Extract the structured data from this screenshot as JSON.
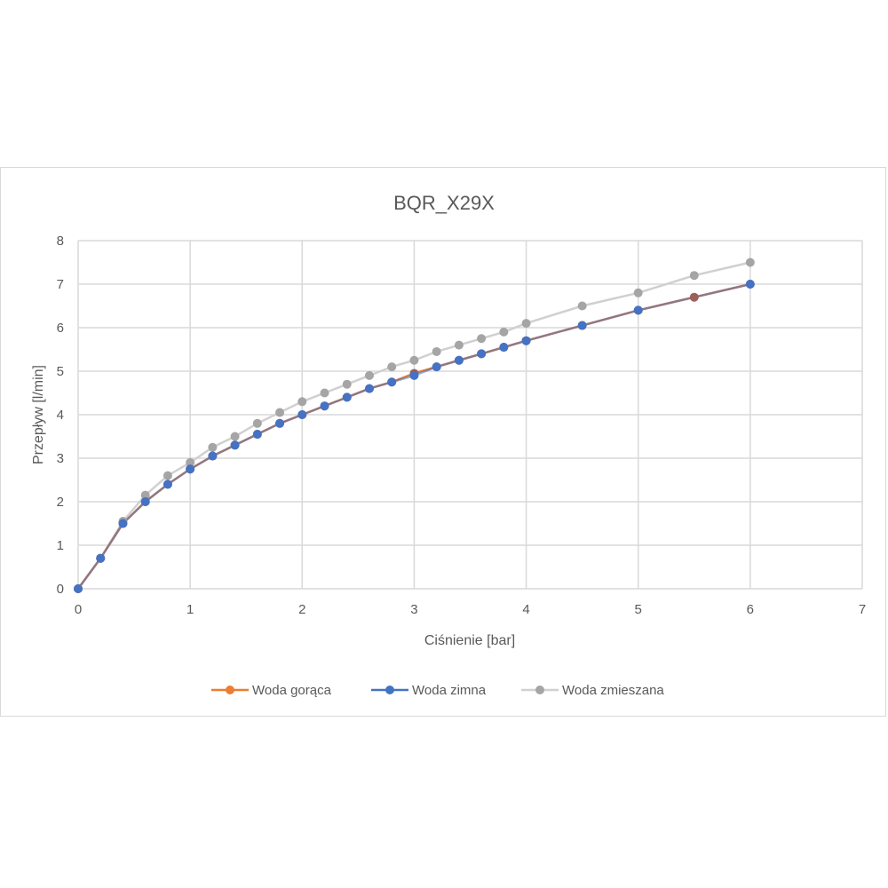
{
  "chart_data": {
    "type": "line",
    "title": "BQR_X29X",
    "xlabel": "Ciśnienie [bar]",
    "ylabel": "Przepływ [l/min]",
    "xlim": [
      0,
      7
    ],
    "ylim": [
      0,
      8
    ],
    "xticks": [
      "0",
      "1",
      "2",
      "3",
      "4",
      "5",
      "6",
      "7"
    ],
    "yticks": [
      "0",
      "1",
      "2",
      "3",
      "4",
      "5",
      "6",
      "7",
      "8"
    ],
    "grid": true,
    "legend_position": "bottom",
    "x": [
      0,
      0.2,
      0.4,
      0.6,
      0.8,
      1.0,
      1.2,
      1.4,
      1.6,
      1.8,
      2.0,
      2.2,
      2.4,
      2.6,
      2.8,
      3.0,
      3.2,
      3.4,
      3.6,
      3.8,
      4.0,
      4.5,
      5.0,
      5.5,
      6.0
    ],
    "series": [
      {
        "name": "Woda gorąca",
        "color": "#ED7D31",
        "values": [
          0,
          0.7,
          1.5,
          2.0,
          2.4,
          2.75,
          3.05,
          3.3,
          3.55,
          3.8,
          4.0,
          4.2,
          4.4,
          4.6,
          4.75,
          4.95,
          5.1,
          5.25,
          5.4,
          5.55,
          5.7,
          6.05,
          6.4,
          6.7,
          7.0
        ]
      },
      {
        "name": "Woda zimna",
        "color": "#4472C4",
        "values": [
          0,
          0.7,
          1.5,
          2.0,
          2.4,
          2.75,
          3.05,
          3.3,
          3.55,
          3.8,
          4.0,
          4.2,
          4.4,
          4.6,
          4.75,
          4.9,
          5.1,
          5.25,
          5.4,
          5.55,
          5.7,
          6.05,
          6.4,
          null,
          7.0
        ]
      },
      {
        "name": "Woda zmieszana",
        "color": "#A5A5A5",
        "values": [
          0,
          0.7,
          1.55,
          2.15,
          2.6,
          2.9,
          3.25,
          3.5,
          3.8,
          4.05,
          4.3,
          4.5,
          4.7,
          4.9,
          5.1,
          5.25,
          5.45,
          5.6,
          5.75,
          5.9,
          6.1,
          6.5,
          6.8,
          7.2,
          7.5
        ]
      }
    ]
  }
}
